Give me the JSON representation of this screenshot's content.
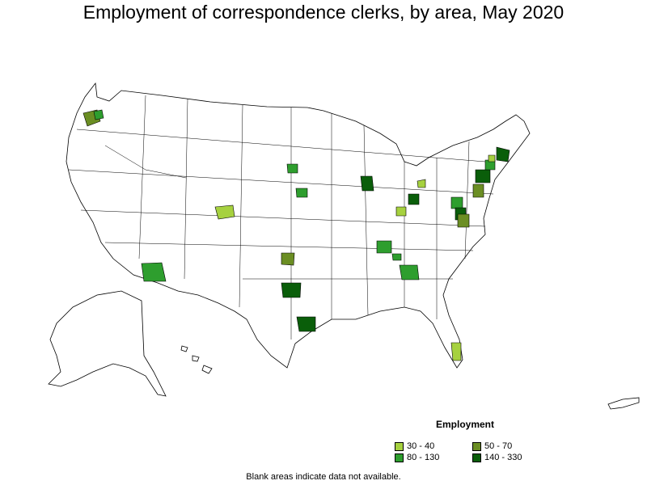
{
  "title": "Employment of correspondence clerks, by area, May 2020",
  "legend": {
    "title": "Employment",
    "items": [
      {
        "label": "30 - 40",
        "color": "#a6d13f"
      },
      {
        "label": "50 - 70",
        "color": "#6b8e23"
      },
      {
        "label": "80 - 130",
        "color": "#2e9e2e"
      },
      {
        "label": "140 - 330",
        "color": "#0a5e0a"
      }
    ]
  },
  "note": "Blank areas indicate data not available."
}
